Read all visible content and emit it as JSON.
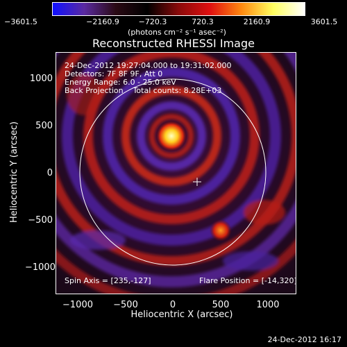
{
  "colorbar": {
    "ticks": [
      "−3601.5",
      "−2160.9",
      "−720.3",
      "720.3",
      "2160.9",
      "3601.5"
    ],
    "unit": "(photons cm⁻² s⁻¹ asec⁻²)",
    "colors": [
      "#1010ff",
      "#5a2aa0",
      "#2a0a14",
      "#000000",
      "#8a0a0a",
      "#e01010",
      "#ff8a10",
      "#ffff60",
      "#ffffff"
    ]
  },
  "title": "Reconstructed RHESSI Image",
  "info": {
    "line1": "24-Dec-2012 19:27:04.000 to 19:31:02.000",
    "line2": "Detectors: 7F 8F 9F, Att 0",
    "line3": "Energy Range: 6.0 - 25.0 keV",
    "line4": "Back Projection    Total counts: 8.28E+03"
  },
  "footer": {
    "spin_axis": "Spin Axis = [235,-127]",
    "flare_position": "Flare Position = [-14,320]"
  },
  "axes": {
    "xlabel": "Heliocentric X (arcsec)",
    "ylabel": "Heliocentric Y (arcsec)",
    "xticks": [
      "−1000",
      "−500",
      "0",
      "500",
      "1000"
    ],
    "yticks": [
      "1000",
      "500",
      "0",
      "−500",
      "−1000"
    ]
  },
  "timestamp": "24-Dec-2012 16:17"
}
